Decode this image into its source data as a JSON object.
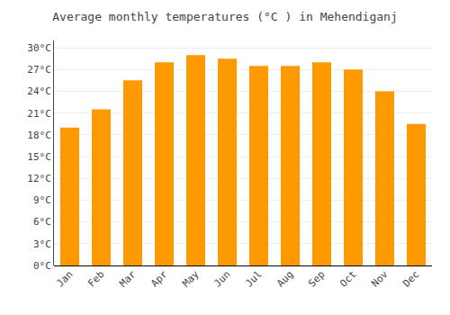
{
  "chart_data": {
    "type": "bar",
    "title": "Average monthly temperatures (°C ) in Mehendiganj",
    "categories": [
      "Jan",
      "Feb",
      "Mar",
      "Apr",
      "May",
      "Jun",
      "Jul",
      "Aug",
      "Sep",
      "Oct",
      "Nov",
      "Dec"
    ],
    "values": [
      19.0,
      21.5,
      25.5,
      28.0,
      29.0,
      28.5,
      27.5,
      27.5,
      28.0,
      27.0,
      24.0,
      19.5
    ],
    "color": "#FF9900",
    "ylim": [
      0,
      31
    ],
    "yticks": [
      {
        "value": 0,
        "label": "0°C"
      },
      {
        "value": 3,
        "label": "3°C"
      },
      {
        "value": 6,
        "label": "6°C"
      },
      {
        "value": 9,
        "label": "9°C"
      },
      {
        "value": 12,
        "label": "12°C"
      },
      {
        "value": 15,
        "label": "15°C"
      },
      {
        "value": 18,
        "label": "18°C"
      },
      {
        "value": 21,
        "label": "21°C"
      },
      {
        "value": 24,
        "label": "24°C"
      },
      {
        "value": 27,
        "label": "27°C"
      },
      {
        "value": 30,
        "label": "30°C"
      }
    ],
    "grid": true
  }
}
